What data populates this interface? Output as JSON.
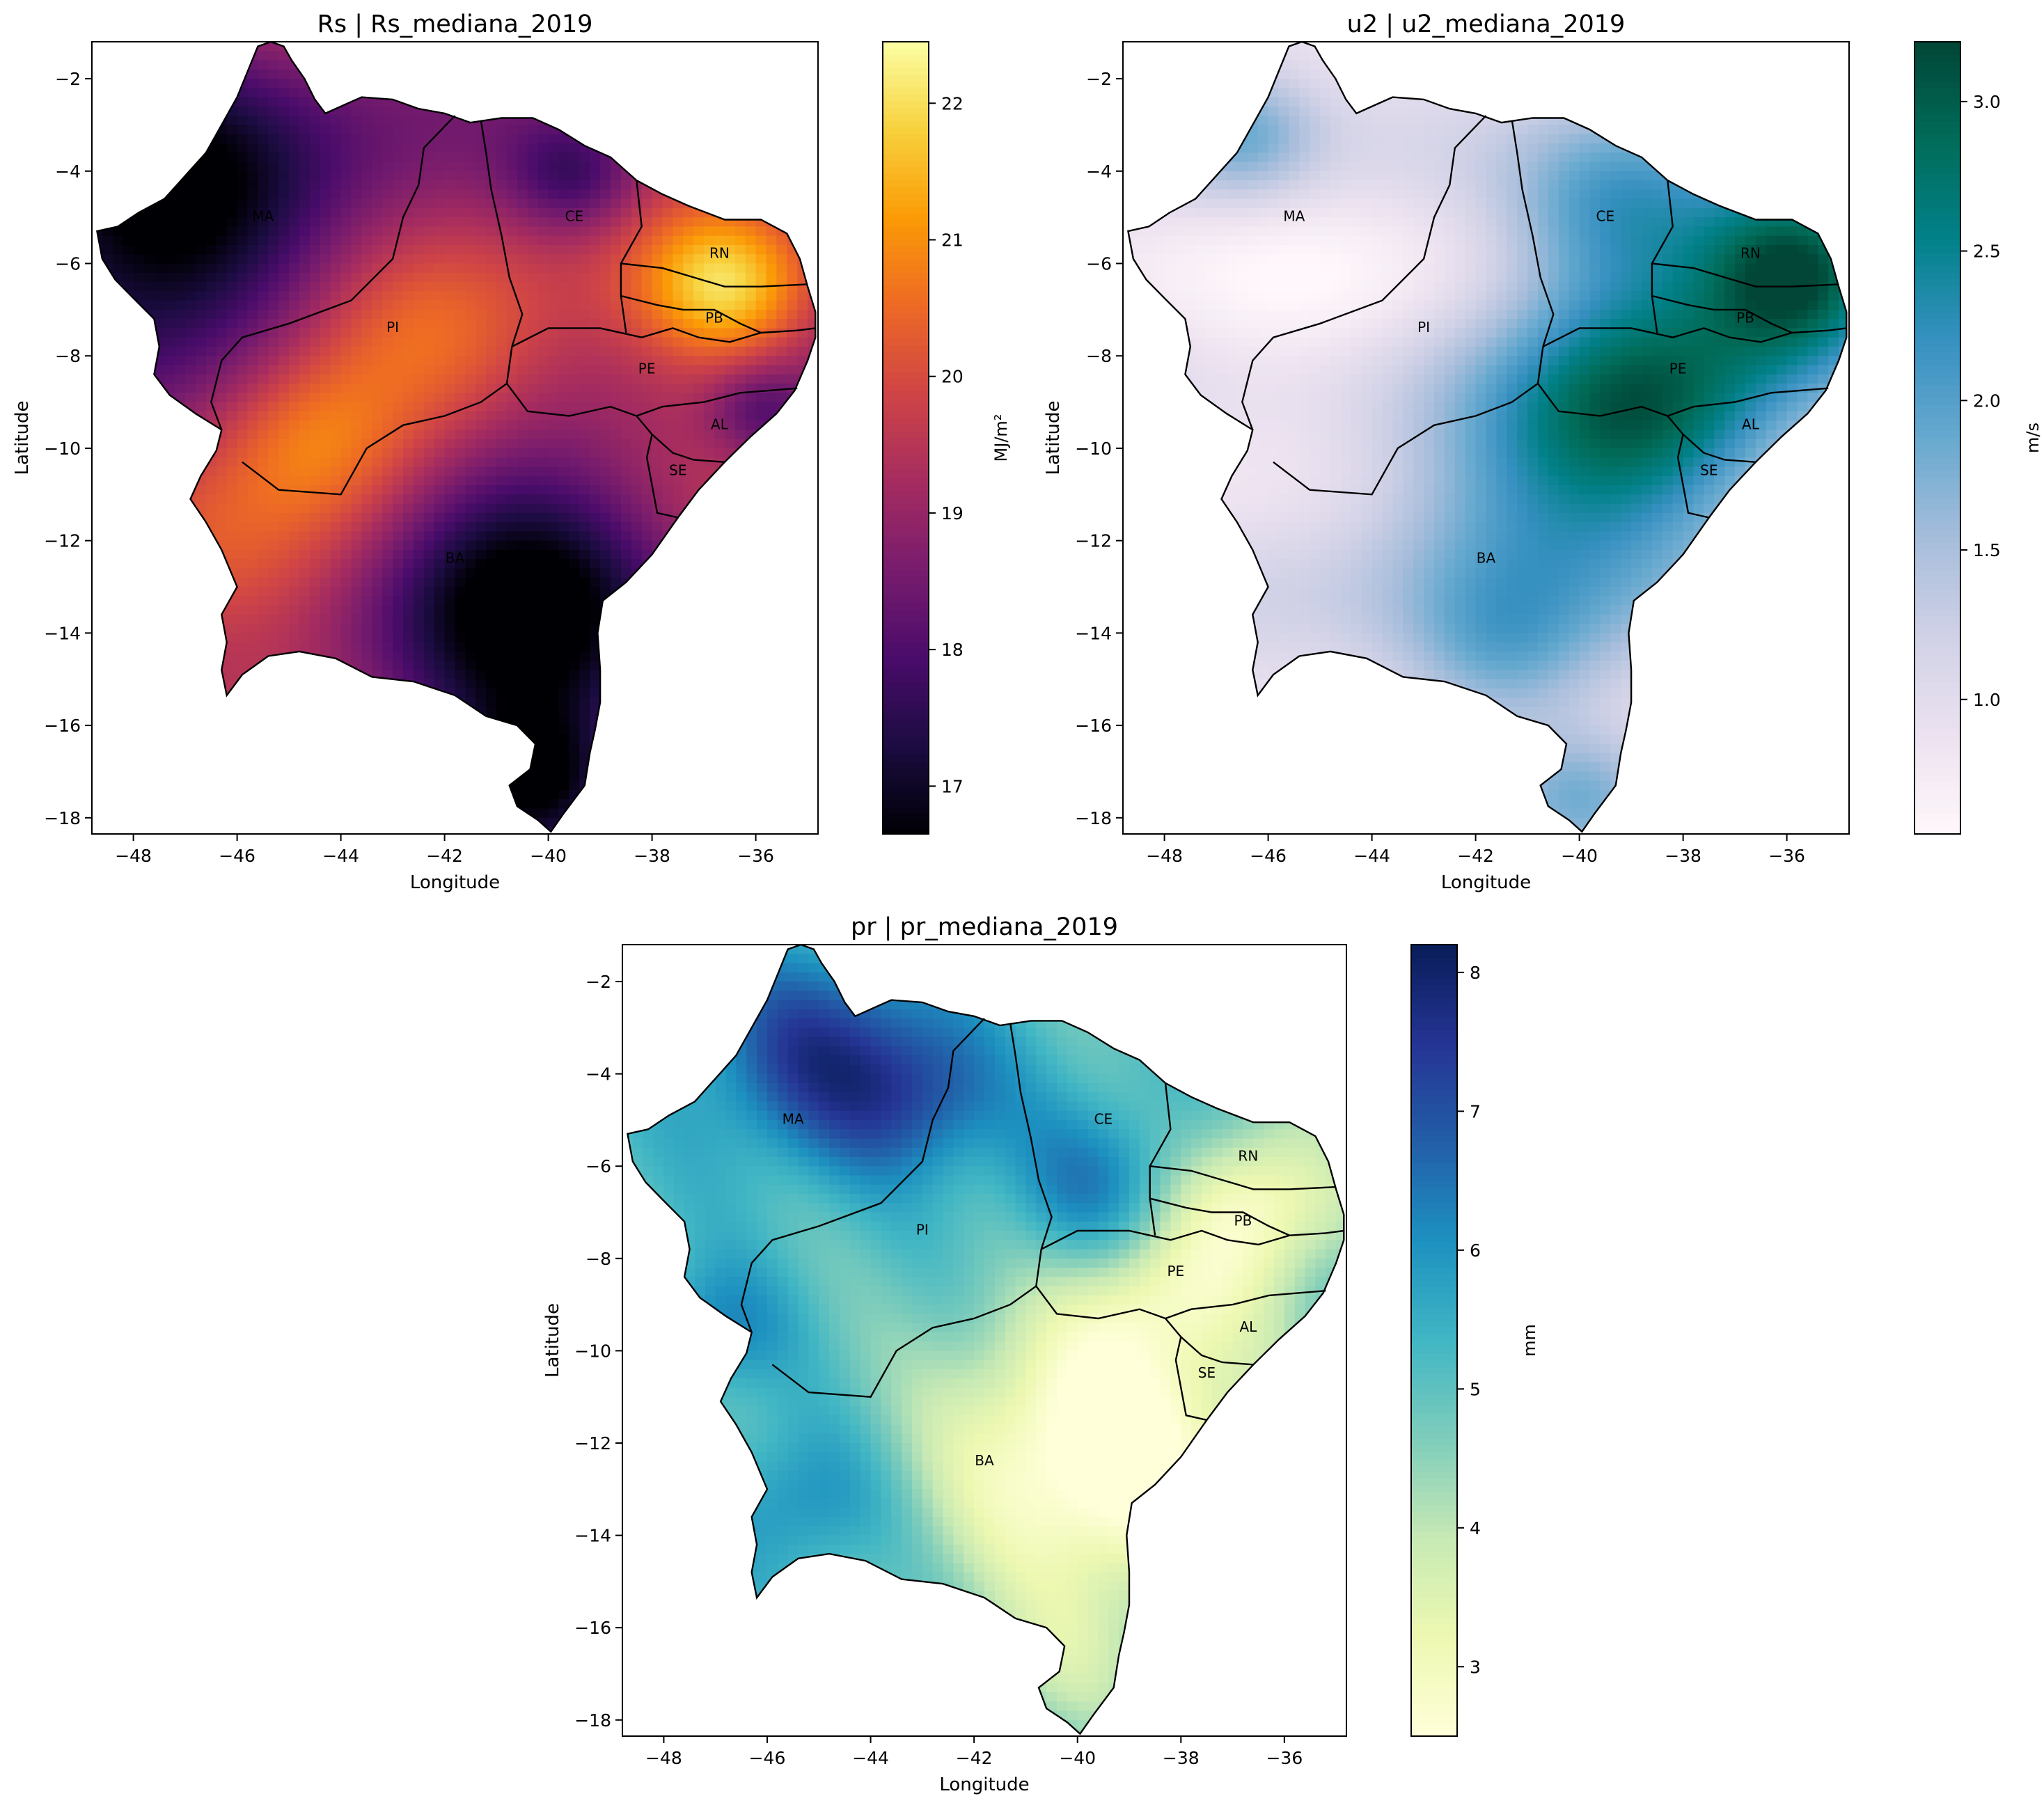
{
  "colors": {
    "rs": [
      "#000004",
      "#1b0c41",
      "#4a0c6b",
      "#781c6d",
      "#a52c60",
      "#cf4446",
      "#ed6925",
      "#fb9b06",
      "#f7d13d",
      "#fcffa4"
    ],
    "u2": [
      "#fff7fb",
      "#ece2f0",
      "#d0d1e6",
      "#a6bddb",
      "#67a9cf",
      "#3690c0",
      "#02818a",
      "#016c59",
      "#014636"
    ],
    "pr": [
      "#ffffd9",
      "#edf8b1",
      "#c7e9b4",
      "#7fcdbb",
      "#41b6c4",
      "#1d91c0",
      "#225ea8",
      "#253494",
      "#081d58"
    ]
  },
  "panels": [
    {
      "id": "rs",
      "title": "Rs | Rs_mediana_2019",
      "xlabel": "Longitude",
      "ylabel": "Latitude",
      "xticks": [
        "−48",
        "−46",
        "−44",
        "−42",
        "−40",
        "−38",
        "−36"
      ],
      "xtick_values": [
        -48,
        -46,
        -44,
        -42,
        -40,
        -38,
        -36
      ],
      "yticks": [
        "−2",
        "−4",
        "−6",
        "−8",
        "−10",
        "−12",
        "−14",
        "−16",
        "−18"
      ],
      "ytick_values": [
        -2,
        -4,
        -6,
        -8,
        -10,
        -12,
        -14,
        -16,
        -18
      ],
      "colorbar": {
        "label": "MJ/m²",
        "min": 16.65,
        "max": 22.45,
        "ticks": [
          "17",
          "18",
          "19",
          "20",
          "21",
          "22"
        ],
        "tick_values": [
          17,
          18,
          19,
          20,
          21,
          22
        ]
      },
      "states": [
        {
          "code": "MA",
          "lon": -45.5,
          "lat": -5.0
        },
        {
          "code": "CE",
          "lon": -39.5,
          "lat": -5.0
        },
        {
          "code": "RN",
          "lon": -36.7,
          "lat": -5.8
        },
        {
          "code": "PI",
          "lon": -43.0,
          "lat": -7.4
        },
        {
          "code": "PB",
          "lon": -36.8,
          "lat": -7.2
        },
        {
          "code": "PE",
          "lon": -38.1,
          "lat": -8.3
        },
        {
          "code": "AL",
          "lon": -36.7,
          "lat": -9.5
        },
        {
          "code": "SE",
          "lon": -37.5,
          "lat": -10.5
        },
        {
          "code": "BA",
          "lon": -41.8,
          "lat": -12.4
        }
      ]
    },
    {
      "id": "u2",
      "title": "u2 | u2_mediana_2019",
      "xlabel": "Longitude",
      "ylabel": "Latitude",
      "xticks": [
        "−48",
        "−46",
        "−44",
        "−42",
        "−40",
        "−38",
        "−36"
      ],
      "xtick_values": [
        -48,
        -46,
        -44,
        -42,
        -40,
        -38,
        -36
      ],
      "yticks": [
        "−2",
        "−4",
        "−6",
        "−8",
        "−10",
        "−12",
        "−14",
        "−16",
        "−18"
      ],
      "ytick_values": [
        -2,
        -4,
        -6,
        -8,
        -10,
        -12,
        -14,
        -16,
        -18
      ],
      "colorbar": {
        "label": "m/s",
        "min": 0.55,
        "max": 3.2,
        "ticks": [
          "1.0",
          "1.5",
          "2.0",
          "2.5",
          "3.0"
        ],
        "tick_values": [
          1.0,
          1.5,
          2.0,
          2.5,
          3.0
        ]
      },
      "states": [
        {
          "code": "MA",
          "lon": -45.5,
          "lat": -5.0
        },
        {
          "code": "CE",
          "lon": -39.5,
          "lat": -5.0
        },
        {
          "code": "RN",
          "lon": -36.7,
          "lat": -5.8
        },
        {
          "code": "PI",
          "lon": -43.0,
          "lat": -7.4
        },
        {
          "code": "PB",
          "lon": -36.8,
          "lat": -7.2
        },
        {
          "code": "PE",
          "lon": -38.1,
          "lat": -8.3
        },
        {
          "code": "AL",
          "lon": -36.7,
          "lat": -9.5
        },
        {
          "code": "SE",
          "lon": -37.5,
          "lat": -10.5
        },
        {
          "code": "BA",
          "lon": -41.8,
          "lat": -12.4
        }
      ]
    },
    {
      "id": "pr",
      "title": "pr | pr_mediana_2019",
      "xlabel": "Longitude",
      "ylabel": "Latitude",
      "xticks": [
        "−48",
        "−46",
        "−44",
        "−42",
        "−40",
        "−38",
        "−36"
      ],
      "xtick_values": [
        -48,
        -46,
        -44,
        -42,
        -40,
        -38,
        -36
      ],
      "yticks": [
        "−2",
        "−4",
        "−6",
        "−8",
        "−10",
        "−12",
        "−14",
        "−16",
        "−18"
      ],
      "ytick_values": [
        -2,
        -4,
        -6,
        -8,
        -10,
        -12,
        -14,
        -16,
        -18
      ],
      "colorbar": {
        "label": "mm",
        "min": 2.5,
        "max": 8.2,
        "ticks": [
          "3",
          "4",
          "5",
          "6",
          "7",
          "8"
        ],
        "tick_values": [
          3,
          4,
          5,
          6,
          7,
          8
        ]
      },
      "states": [
        {
          "code": "MA",
          "lon": -45.5,
          "lat": -5.0
        },
        {
          "code": "CE",
          "lon": -39.5,
          "lat": -5.0
        },
        {
          "code": "RN",
          "lon": -36.7,
          "lat": -5.8
        },
        {
          "code": "PI",
          "lon": -43.0,
          "lat": -7.4
        },
        {
          "code": "PB",
          "lon": -36.8,
          "lat": -7.2
        },
        {
          "code": "PE",
          "lon": -38.1,
          "lat": -8.3
        },
        {
          "code": "AL",
          "lon": -36.7,
          "lat": -9.5
        },
        {
          "code": "SE",
          "lon": -37.5,
          "lat": -10.5
        },
        {
          "code": "BA",
          "lon": -41.8,
          "lat": -12.4
        }
      ]
    }
  ]
}
